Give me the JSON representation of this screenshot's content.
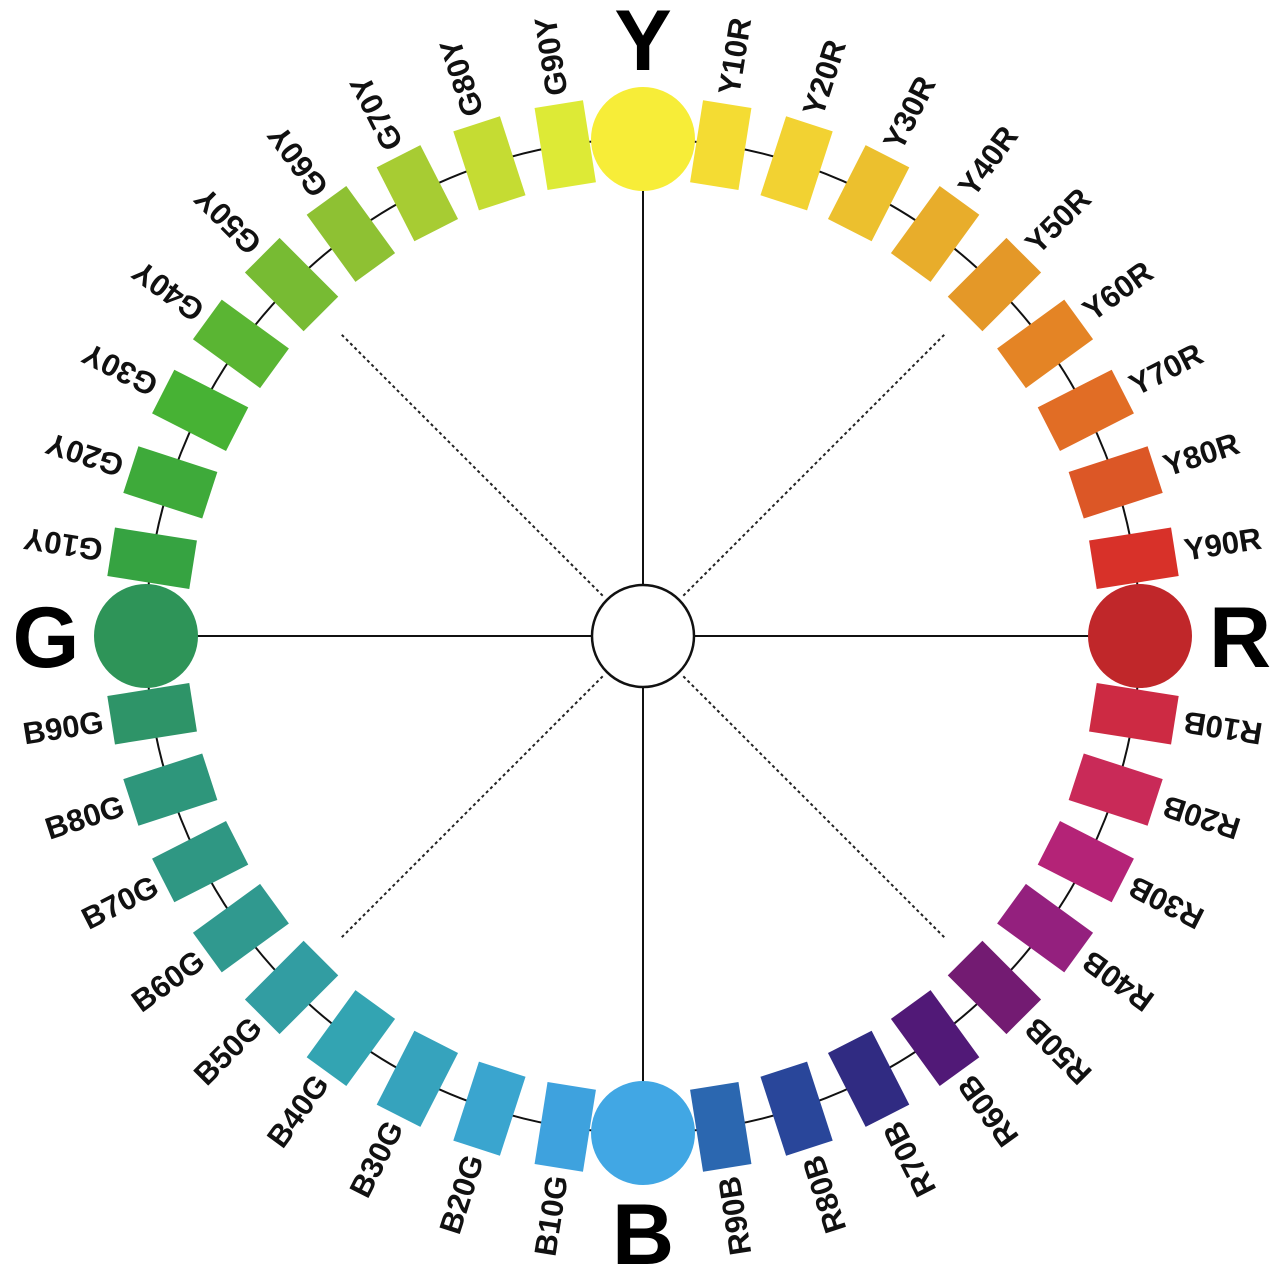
{
  "primaries": [
    {
      "label": "Y",
      "color": "#f7ed38"
    },
    {
      "label": "R",
      "color": "#c0272a"
    },
    {
      "label": "B",
      "color": "#41a7e4"
    },
    {
      "label": "G",
      "color": "#2e9458"
    }
  ],
  "neutral_color": "#ffffff",
  "steps": [
    {
      "label": "Y10R",
      "color": "#f4dc33"
    },
    {
      "label": "Y20R",
      "color": "#f2d232"
    },
    {
      "label": "Y30R",
      "color": "#ecc02e"
    },
    {
      "label": "Y40R",
      "color": "#e8ad2b"
    },
    {
      "label": "Y50R",
      "color": "#e49828"
    },
    {
      "label": "Y60R",
      "color": "#e48425"
    },
    {
      "label": "Y70R",
      "color": "#e16d25"
    },
    {
      "label": "Y80R",
      "color": "#dc5726"
    },
    {
      "label": "Y90R",
      "color": "#d83129"
    },
    {
      "label": "R10B",
      "color": "#cd2a43"
    },
    {
      "label": "R20B",
      "color": "#c92a58"
    },
    {
      "label": "R30B",
      "color": "#b42377"
    },
    {
      "label": "R40B",
      "color": "#94207e"
    },
    {
      "label": "R50B",
      "color": "#731b72"
    },
    {
      "label": "R60B",
      "color": "#511977"
    },
    {
      "label": "R70B",
      "color": "#302b82"
    },
    {
      "label": "R80B",
      "color": "#29469a"
    },
    {
      "label": "R90B",
      "color": "#2b67b0"
    },
    {
      "label": "B10G",
      "color": "#3ea2de"
    },
    {
      "label": "B20G",
      "color": "#3aa5cf"
    },
    {
      "label": "B30G",
      "color": "#36a3bd"
    },
    {
      "label": "B40G",
      "color": "#33a4b2"
    },
    {
      "label": "B50G",
      "color": "#329da2"
    },
    {
      "label": "B60G",
      "color": "#30998f"
    },
    {
      "label": "B70G",
      "color": "#2f9783"
    },
    {
      "label": "B80G",
      "color": "#2e967b"
    },
    {
      "label": "B90G",
      "color": "#2e9468"
    },
    {
      "label": "G10Y",
      "color": "#36a341"
    },
    {
      "label": "G20Y",
      "color": "#3eaa3a"
    },
    {
      "label": "G30Y",
      "color": "#47b234"
    },
    {
      "label": "G40Y",
      "color": "#5ab533"
    },
    {
      "label": "G50Y",
      "color": "#77bb33"
    },
    {
      "label": "G60Y",
      "color": "#8ec133"
    },
    {
      "label": "G70Y",
      "color": "#a7cc33"
    },
    {
      "label": "G80Y",
      "color": "#c5dc33"
    },
    {
      "label": "G90Y",
      "color": "#ddea36"
    }
  ]
}
